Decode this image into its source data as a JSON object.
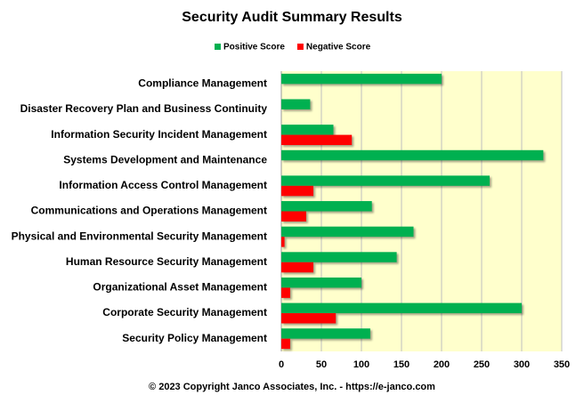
{
  "chart_data": {
    "type": "bar",
    "orientation": "horizontal",
    "title": "Security Audit Summary Results",
    "footer": "© 2023 Copyright Janco Associates, Inc. - https://e-janco.com",
    "categories": [
      "Compliance Management",
      "Disaster Recovery Plan and Business Continuity",
      "Information Security Incident Management",
      "Systems Development and Maintenance",
      "Information Access Control Management",
      "Communications and Operations Management",
      "Physical and Environmental Security Management",
      "Human Resource Security Management",
      "Organizational Asset Management",
      "Corporate Security Management",
      "Security Policy Management"
    ],
    "series": [
      {
        "name": "Positive Score",
        "color": "#00b050",
        "values": [
          200,
          36,
          65,
          327,
          260,
          113,
          165,
          144,
          100,
          300,
          111
        ]
      },
      {
        "name": "Negative Score",
        "color": "#ff0000",
        "values": [
          0,
          0,
          88,
          0,
          40,
          31,
          4,
          40,
          11,
          68,
          11
        ]
      }
    ],
    "xlim": [
      0,
      350
    ],
    "xticks": [
      0,
      50,
      100,
      150,
      200,
      250,
      300,
      350
    ],
    "grid": true,
    "plot_background": "#ffffcc",
    "legend": "top"
  }
}
